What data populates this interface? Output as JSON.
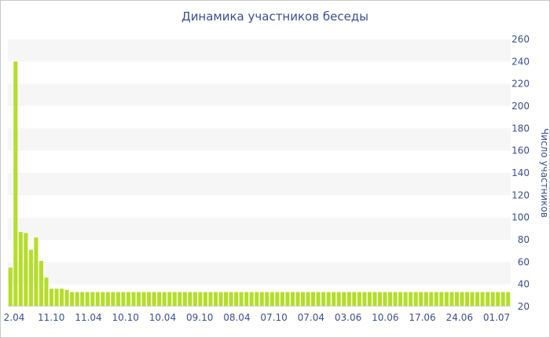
{
  "chart_data": {
    "type": "bar",
    "title": "Динамика участников беседы",
    "xlabel": "",
    "ylabel": "Число участников",
    "ylim": [
      20,
      260
    ],
    "yticks": [
      20,
      40,
      60,
      80,
      100,
      120,
      140,
      160,
      180,
      200,
      220,
      240,
      260
    ],
    "y_axis_position": "right",
    "grid": "alternating horizontal bands",
    "bar_color": "#b5dd2b",
    "x_tick_labels": [
      "2.04",
      "11.10",
      "11.04",
      "10.10",
      "10.04",
      "09.10",
      "08.04",
      "07.10",
      "07.04",
      "03.06",
      "10.06",
      "17.06",
      "24.06",
      "01.07"
    ],
    "values": [
      55,
      240,
      87,
      86,
      71,
      82,
      61,
      46,
      36,
      36,
      36,
      35,
      33,
      33,
      33,
      33,
      33,
      33,
      33,
      33,
      33,
      33,
      33,
      33,
      33,
      33,
      33,
      33,
      33,
      33,
      33,
      33,
      33,
      33,
      33,
      33,
      33,
      33,
      33,
      33,
      33,
      33,
      33,
      33,
      33,
      33,
      33,
      33,
      33,
      33,
      33,
      33,
      33,
      33,
      33,
      33,
      33,
      33,
      33,
      33,
      33,
      33,
      33,
      33,
      33,
      33,
      33,
      33,
      33,
      33,
      33,
      33,
      33,
      33,
      33,
      33,
      33,
      33,
      33,
      33,
      33,
      33,
      33,
      33,
      33,
      33,
      33,
      33,
      33,
      33,
      33,
      33,
      33,
      33,
      33,
      33,
      33,
      33
    ]
  }
}
